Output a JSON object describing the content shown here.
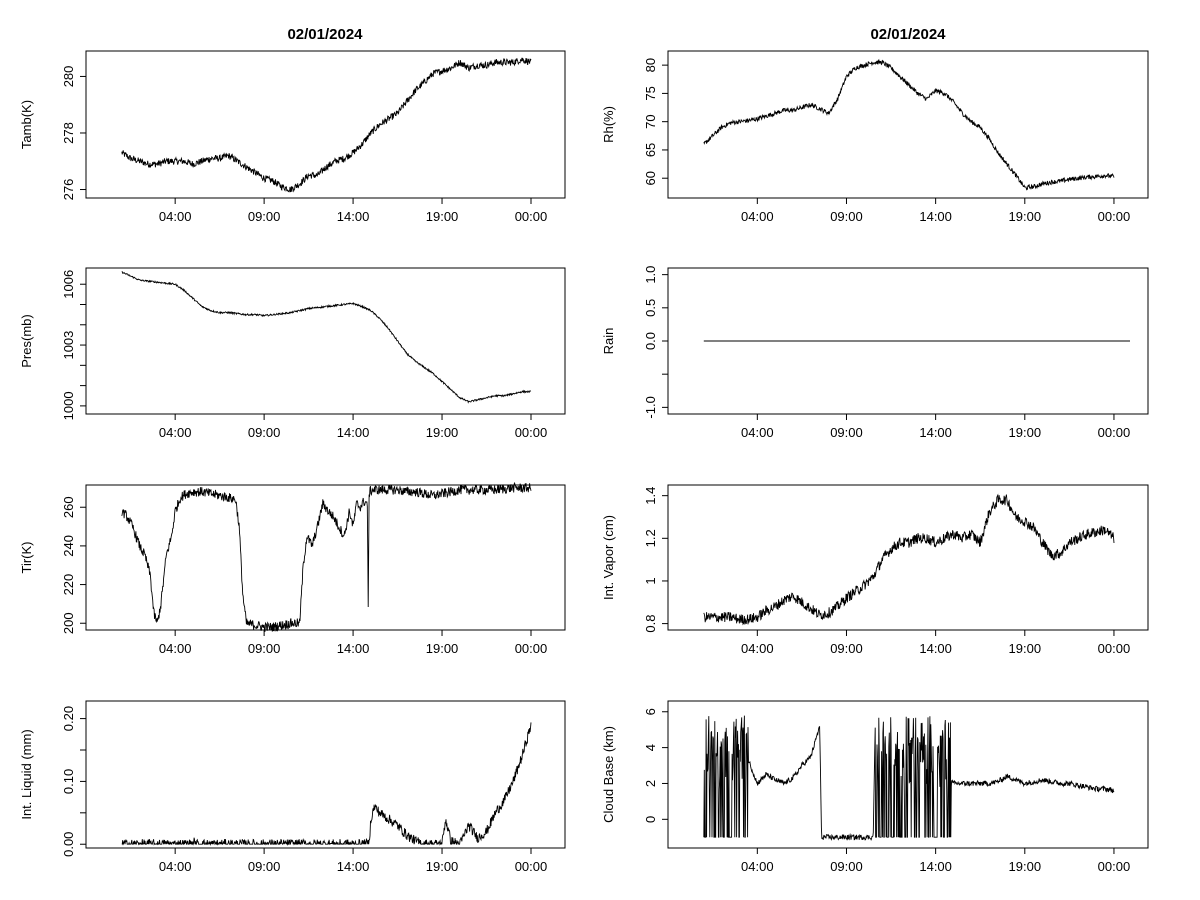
{
  "figure": {
    "titles": [
      "02/01/2024",
      "02/01/2024"
    ],
    "time_ticks": [
      "04:00",
      "09:00",
      "14:00",
      "19:00",
      "00:00"
    ],
    "time_tick_hours": [
      4,
      9,
      14,
      19,
      24
    ],
    "x_range_hours": [
      0.0,
      24.9
    ]
  },
  "chart_data": [
    {
      "id": "tamb",
      "type": "line",
      "title": "02/01/2024",
      "xlabel": "",
      "ylabel": "Tamb(K)",
      "ylim": [
        275.7,
        280.9
      ],
      "yticks": [
        276,
        278,
        280
      ],
      "x": [
        1,
        1.5,
        2,
        2.5,
        3,
        3.5,
        4,
        4.5,
        5,
        5.5,
        6,
        6.5,
        7,
        7.5,
        8,
        8.5,
        9,
        9.5,
        10,
        10.5,
        11,
        11.5,
        12,
        12.5,
        13,
        13.5,
        14,
        14.5,
        15,
        15.5,
        16,
        16.5,
        17,
        17.5,
        18,
        18.5,
        19,
        19.5,
        20,
        20.5,
        21,
        21.5,
        22,
        22.5,
        23,
        23.5,
        24
      ],
      "y": [
        277.3,
        277.1,
        277.0,
        276.9,
        276.9,
        277.0,
        277.0,
        277.0,
        276.9,
        277.0,
        277.1,
        277.1,
        277.2,
        277.0,
        276.8,
        276.6,
        276.4,
        276.3,
        276.1,
        276.0,
        276.2,
        276.5,
        276.5,
        276.8,
        277.0,
        277.1,
        277.3,
        277.6,
        278.0,
        278.3,
        278.5,
        278.7,
        279.1,
        279.5,
        279.8,
        280.1,
        280.2,
        280.3,
        280.5,
        280.3,
        280.4,
        280.4,
        280.5,
        280.5,
        280.5,
        280.6,
        280.5
      ],
      "noise": 0.12
    },
    {
      "id": "rh",
      "type": "line",
      "title": "02/01/2024",
      "xlabel": "",
      "ylabel": "Rh(%)",
      "ylim": [
        56.5,
        82.5
      ],
      "yticks": [
        60,
        65,
        70,
        75,
        80
      ],
      "x": [
        1,
        1.5,
        2,
        2.5,
        3,
        3.5,
        4,
        4.5,
        5,
        5.5,
        6,
        6.5,
        7,
        7.5,
        8,
        8.5,
        9,
        9.5,
        10,
        10.5,
        11,
        11.5,
        12,
        12.5,
        13,
        13.5,
        14,
        14.5,
        15,
        15.5,
        16,
        16.5,
        17,
        17.5,
        18,
        18.5,
        19,
        19.5,
        20,
        20.5,
        21,
        21.5,
        22,
        22.5,
        23,
        23.5,
        24
      ],
      "y": [
        66,
        67.5,
        69,
        69.8,
        70,
        70.2,
        70.5,
        71,
        71.5,
        72,
        72,
        72.5,
        73,
        72.3,
        71.5,
        74,
        78,
        79.5,
        80,
        80.5,
        80.5,
        79.5,
        78,
        76.5,
        75,
        74,
        75.5,
        75,
        73.5,
        71.5,
        70,
        69,
        67,
        64.5,
        62.5,
        60.5,
        58.3,
        58.5,
        59,
        59.3,
        59.5,
        59.8,
        60,
        60.2,
        60.3,
        60.5,
        60.3
      ],
      "noise": 0.4
    },
    {
      "id": "pres",
      "type": "line",
      "title": "",
      "xlabel": "",
      "ylabel": "Pres(mb)",
      "ylim": [
        999.6,
        1006.8
      ],
      "yticks": [
        1000,
        1003,
        1006
      ],
      "ytick_labels_minor": [
        1001,
        1002,
        1004,
        1005
      ],
      "x": [
        1,
        1.5,
        2,
        2.5,
        3,
        3.5,
        4,
        4.5,
        5,
        5.5,
        6,
        6.5,
        7,
        7.5,
        8,
        8.5,
        9,
        9.5,
        10,
        10.5,
        11,
        11.5,
        12,
        12.5,
        13,
        13.5,
        14,
        14.5,
        15,
        15.5,
        16,
        16.5,
        17,
        17.5,
        18,
        18.5,
        19,
        19.5,
        20,
        20.5,
        21,
        21.5,
        22,
        22.5,
        23,
        23.5,
        24
      ],
      "y": [
        1006.6,
        1006.4,
        1006.2,
        1006.15,
        1006.1,
        1006.05,
        1006.0,
        1005.7,
        1005.3,
        1004.9,
        1004.7,
        1004.6,
        1004.6,
        1004.55,
        1004.5,
        1004.5,
        1004.45,
        1004.5,
        1004.55,
        1004.6,
        1004.7,
        1004.8,
        1004.85,
        1004.9,
        1004.95,
        1005.0,
        1005.05,
        1004.9,
        1004.7,
        1004.3,
        1003.8,
        1003.2,
        1002.6,
        1002.2,
        1001.9,
        1001.6,
        1001.2,
        1000.8,
        1000.4,
        1000.2,
        1000.3,
        1000.4,
        1000.5,
        1000.5,
        1000.6,
        1000.7,
        1000.7
      ],
      "noise": 0.04
    },
    {
      "id": "rain",
      "type": "line",
      "title": "",
      "xlabel": "",
      "ylabel": "Rain",
      "ylim": [
        -1.1,
        1.1
      ],
      "yticks": [
        -1.0,
        -0.5,
        0.0,
        0.5,
        1.0
      ],
      "ytick_labels": [
        "-1.0",
        "",
        "0.0",
        "0.5",
        "1.0"
      ],
      "x": [
        1,
        24.9
      ],
      "y": [
        0,
        0
      ],
      "noise": 0
    },
    {
      "id": "tir",
      "type": "line",
      "title": "",
      "xlabel": "",
      "ylabel": "Tir(K)",
      "ylim": [
        196.5,
        271.5
      ],
      "yticks": [
        200,
        220,
        240,
        260
      ],
      "x": [
        1,
        1.3,
        1.6,
        2,
        2.3,
        2.6,
        2.8,
        3,
        3.2,
        3.5,
        3.8,
        4,
        4.3,
        4.6,
        5,
        5.5,
        6,
        6.5,
        7,
        7.4,
        7.6,
        7.8,
        8,
        8.5,
        9,
        9.5,
        10,
        10.5,
        11,
        11.2,
        11.4,
        11.7,
        12,
        12.3,
        12.6,
        12.9,
        13.2,
        13.5,
        13.8,
        14,
        14.2,
        14.4,
        14.6,
        14.8,
        14.85,
        14.9,
        15.1,
        15.5,
        16,
        16.5,
        17,
        17.5,
        18,
        18.5,
        19,
        19.5,
        20,
        21,
        22,
        23,
        24
      ],
      "y": [
        258,
        255,
        250,
        240,
        235,
        225,
        205,
        200,
        210,
        235,
        245,
        258,
        265,
        267,
        268,
        268,
        267,
        266,
        265,
        264,
        250,
        215,
        200,
        199,
        198,
        198,
        199,
        200,
        200,
        230,
        245,
        240,
        250,
        262,
        258,
        255,
        250,
        245,
        258,
        250,
        262,
        260,
        263,
        262,
        205,
        268,
        269,
        269,
        269,
        269,
        268,
        268,
        267,
        266,
        267,
        268,
        269,
        269,
        269,
        270,
        270
      ],
      "noise": 2.5
    },
    {
      "id": "vapor",
      "type": "line",
      "title": "",
      "xlabel": "",
      "ylabel": "Int. Vapor (cm)",
      "ylim": [
        0.77,
        1.45
      ],
      "yticks": [
        0.8,
        1.0,
        1.2,
        1.4
      ],
      "x": [
        1,
        1.5,
        2,
        2.5,
        3,
        3.5,
        4,
        4.5,
        5,
        5.5,
        6,
        6.5,
        7,
        7.5,
        8,
        8.5,
        9,
        9.5,
        10,
        10.5,
        11,
        11.5,
        12,
        12.5,
        13,
        13.5,
        14,
        14.5,
        15,
        15.5,
        16,
        16.5,
        17,
        17.5,
        18,
        18.5,
        19,
        19.5,
        20,
        20.5,
        21,
        21.5,
        22,
        22.5,
        23,
        23.5,
        24
      ],
      "y": [
        0.83,
        0.83,
        0.83,
        0.83,
        0.82,
        0.82,
        0.83,
        0.86,
        0.88,
        0.91,
        0.93,
        0.9,
        0.87,
        0.84,
        0.85,
        0.88,
        0.92,
        0.95,
        0.98,
        1.02,
        1.1,
        1.15,
        1.18,
        1.18,
        1.2,
        1.2,
        1.18,
        1.2,
        1.22,
        1.2,
        1.22,
        1.18,
        1.32,
        1.38,
        1.38,
        1.3,
        1.28,
        1.25,
        1.18,
        1.12,
        1.13,
        1.18,
        1.2,
        1.22,
        1.23,
        1.24,
        1.2
      ],
      "noise": 0.025
    },
    {
      "id": "liquid",
      "type": "line",
      "title": "",
      "xlabel": "",
      "ylabel": "Int. Liquid (mm)",
      "ylim": [
        -0.006,
        0.228
      ],
      "yticks": [
        0.0,
        0.1,
        0.2
      ],
      "ytick_labels": [
        "0.00",
        "0.10",
        "0.20"
      ],
      "ytick_minor": [
        0.05,
        0.15
      ],
      "x": [
        1,
        5,
        5.05,
        5.1,
        14.9,
        15,
        15.2,
        15.5,
        16,
        16.5,
        17,
        17.5,
        18,
        18.5,
        19,
        19.2,
        19.5,
        20,
        20.5,
        21,
        21.5,
        22,
        22.5,
        23,
        23.5,
        24
      ],
      "y": [
        0,
        0,
        0.004,
        0,
        0,
        0.04,
        0.06,
        0.05,
        0.04,
        0.03,
        0.015,
        0.005,
        0,
        0,
        0,
        0.04,
        0.005,
        0,
        0.03,
        0.01,
        0.02,
        0.05,
        0.07,
        0.1,
        0.14,
        0.19
      ],
      "noise": 0.008
    },
    {
      "id": "cloudbase",
      "type": "line",
      "title": "",
      "xlabel": "",
      "ylabel": "Cloud Base (km)",
      "ylim": [
        -1.6,
        6.6
      ],
      "yticks": [
        0,
        2,
        4,
        6
      ],
      "x": [
        1,
        3.5,
        4,
        4.5,
        5,
        5.5,
        6,
        6.5,
        7,
        7.5,
        7.6,
        10.5,
        10.6,
        15,
        15.5,
        16,
        16.5,
        17,
        17.5,
        18,
        18.5,
        19,
        19.5,
        20,
        20.5,
        21,
        21.5,
        22,
        22.5,
        23,
        23.5,
        24
      ],
      "y": [
        3.5,
        3.3,
        2.0,
        2.5,
        2.2,
        2.0,
        2.3,
        3.0,
        3.5,
        5.2,
        -1.0,
        -1.0,
        4.8,
        2.0,
        2.0,
        2.0,
        2.0,
        2.0,
        2.1,
        2.4,
        2.2,
        2.0,
        2.1,
        2.2,
        2.1,
        2.0,
        2.0,
        1.9,
        1.8,
        1.7,
        1.7,
        1.6
      ],
      "spike_ranges": [
        [
          1,
          3.5
        ],
        [
          10.6,
          14.9
        ]
      ],
      "noise": 0.15
    }
  ]
}
